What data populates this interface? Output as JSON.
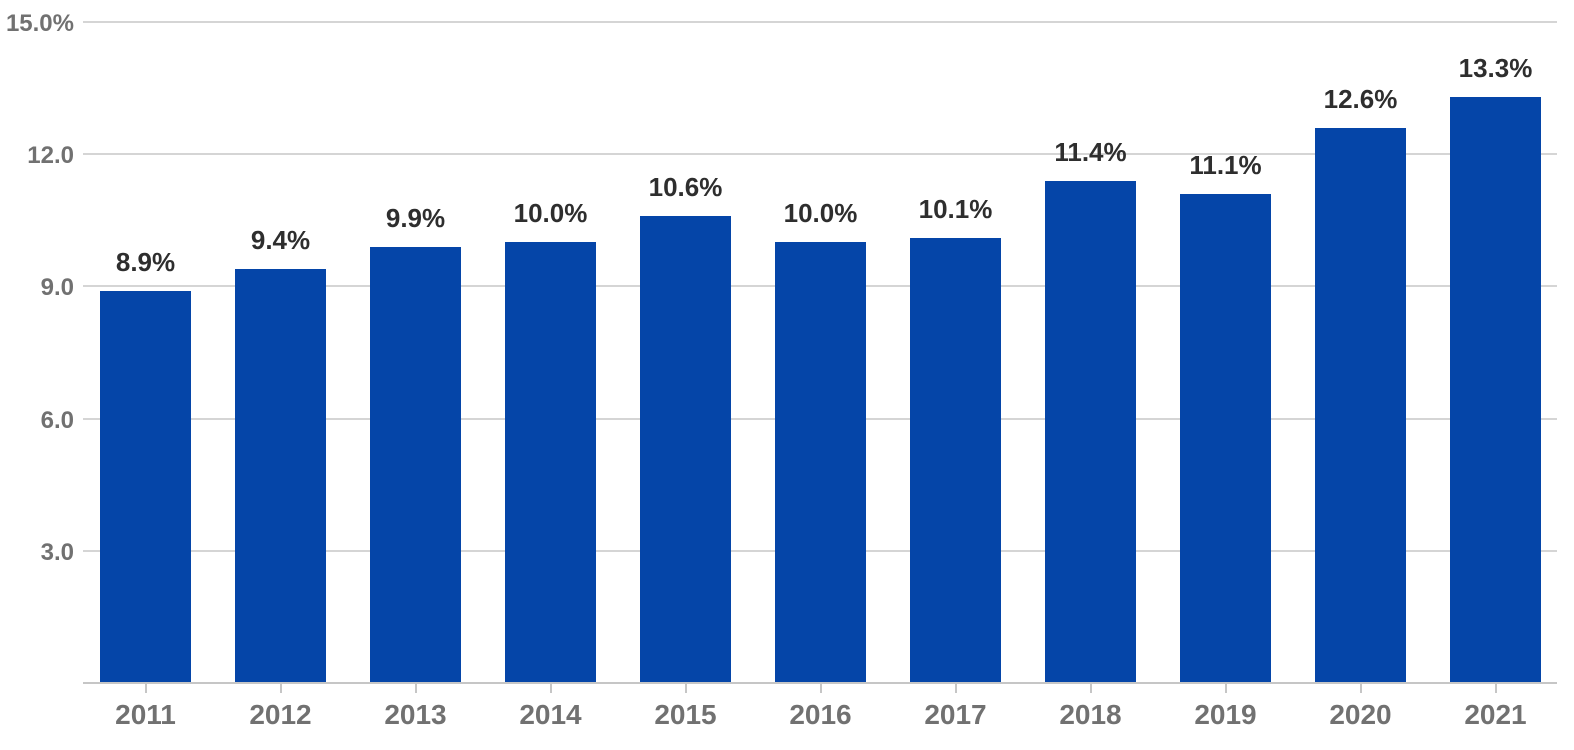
{
  "chart_data": {
    "type": "bar",
    "categories": [
      "2011",
      "2012",
      "2013",
      "2014",
      "2015",
      "2016",
      "2017",
      "2018",
      "2019",
      "2020",
      "2021"
    ],
    "values": [
      8.9,
      9.4,
      9.9,
      10.0,
      10.6,
      10.0,
      10.1,
      11.4,
      11.1,
      12.6,
      13.3
    ],
    "value_labels": [
      "8.9%",
      "9.4%",
      "9.9%",
      "10.0%",
      "10.6%",
      "10.0%",
      "10.1%",
      "11.4%",
      "11.1%",
      "12.6%",
      "13.3%"
    ],
    "y_ticks": [
      {
        "value": 15,
        "label": "15.0%"
      },
      {
        "value": 12,
        "label": "12.0"
      },
      {
        "value": 9,
        "label": "9.0"
      },
      {
        "value": 6,
        "label": "6.0"
      },
      {
        "value": 3,
        "label": "3.0"
      }
    ],
    "ylim": [
      0,
      15
    ],
    "grid": true,
    "legend": "none",
    "colors": {
      "bar": "#0545a8",
      "gridline": "#d5d5d5",
      "axis_line": "#c6c6c6",
      "axis_label_text": "#717171",
      "value_label_text": "#2e2e2e",
      "background": "#ffffff"
    }
  }
}
